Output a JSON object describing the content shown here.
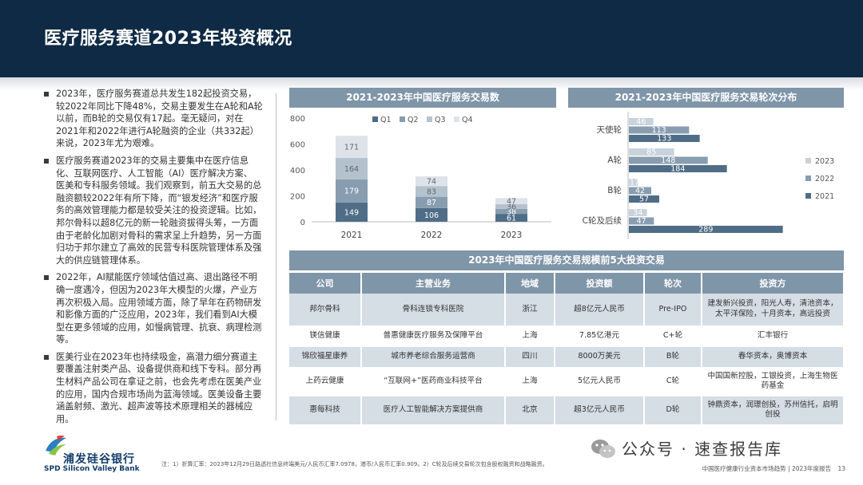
{
  "page": {
    "title": "医疗服务赛道2023年投资概况",
    "page_number": "13",
    "footer_report": "中国医疗健康行业资本市场趋势 | 2023年度报告",
    "footnote": "注：1）折算汇率：2023年12月29日路透社信息终端美元/人民币汇率7.0978，港币/人民币汇率0.909。2）C轮及后续交易轮次包含股权融资和战略融资。",
    "watermark": "公众号 · 速查报告库",
    "logo": {
      "cn": "浦发硅谷银行",
      "en": "SPD Silicon Valley Bank"
    }
  },
  "bullets": [
    "2023年，医疗服务赛道总共发生182起投资交易，较2022年同比下降48%，交易主要发生在A轮和A轮以前，而B轮的交易仅有17起。毫无疑问，对在2021年和2022年进行A轮融资的企业（共332起）来说，2023年尤为艰难。",
    "医疗服务赛道2023年的交易主要集中在医疗信息化、互联网医疗、人工智能（AI）医疗解决方案、 医美和专科服务领域。我们观察到，前五大交易的总融资额较2022年有所下降，而“银发经济”和医疗服务的高效管理能力都是较受关注的投资逻辑。比如，邦尔骨科以超8亿元的新一轮融资拔得头筹，一方面由于老龄化加剧对骨科的需求呈上升趋势，另一方面归功于邦尔建立了高效的民营专科医院管理体系及强大的供应链管理体系。",
    "2022年，AI赋能医疗领域估值过高、退出路径不明确一度遇冷，但因为2023年大模型的火爆，产业方再次积极入局。应用领域方面，除了早年在药物研发和影像方面的广泛应用，2023年，我们看到AI大模型在更多领域的应用，如慢病管理、抗衰、病理检测等。",
    "医美行业在2023年也持续吸金，高潜力细分赛道主要覆盖注射类产品、设备提供商和线下专科。部分再生材料产品公司在拿证之前，也会先考虑在医美产业的应用，国内合规市场尚为蓝海领域。医美设备主要涵盖射频、激光、超声波等技术原理相关的器械应用。"
  ],
  "chart_left": {
    "title": "2021-2023年中国医疗服务交易数"
  },
  "chart_right": {
    "title": "2021-2023年中国医疗服务交易轮次分布"
  },
  "chart_data": [
    {
      "type": "bar",
      "stacked": true,
      "title": "2021-2023年中国医疗服务交易数",
      "categories": [
        "2021",
        "2022",
        "2023"
      ],
      "series": [
        {
          "name": "Q1",
          "values": [
            149,
            106,
            61
          ],
          "color": "#4f6d87"
        },
        {
          "name": "Q2",
          "values": [
            179,
            87,
            38
          ],
          "color": "#889db0"
        },
        {
          "name": "Q3",
          "values": [
            164,
            83,
            36
          ],
          "color": "#b4c2ce"
        },
        {
          "name": "Q4",
          "values": [
            171,
            74,
            47
          ],
          "color": "#dde3e9"
        }
      ],
      "yticks": [
        "0",
        "200",
        "400",
        "600",
        "800"
      ],
      "ylim": [
        0,
        800
      ],
      "legend": "top"
    },
    {
      "type": "bar",
      "orientation": "horizontal",
      "title": "2021-2023年中国医疗服务交易轮次分布",
      "categories": [
        "天使轮",
        "A轮",
        "B轮",
        "C轮及后续"
      ],
      "series": [
        {
          "name": "2023",
          "values": [
            46,
            85,
            17,
            34
          ],
          "color": "#c8d2dc"
        },
        {
          "name": "2022",
          "values": [
            113,
            148,
            42,
            47
          ],
          "color": "#889db0"
        },
        {
          "name": "2021",
          "values": [
            133,
            184,
            57,
            289
          ],
          "color": "#4f6d87"
        }
      ],
      "xlim": [
        0,
        300
      ],
      "legend": "right"
    }
  ],
  "table": {
    "title": "2023年中国医疗服务交易规模前5大投资交易",
    "headers": [
      "公司",
      "主营业务",
      "地域",
      "投资额",
      "轮次",
      "投资方"
    ],
    "rows": [
      [
        "邦尔骨科",
        "骨科连锁专科医院",
        "浙江",
        "超8亿元人民币",
        "Pre-IPO",
        "建发新兴投资，阳光人寿，清池资本，太平洋保险，十月资本，高远投资"
      ],
      [
        "镁信健康",
        "普惠健康医疗服务及保障平台",
        "上海",
        "7.85亿港元",
        "C+轮",
        "汇丰银行"
      ],
      [
        "锦欣福星康养",
        "城市养老综合服务运营商",
        "四川",
        "8000万美元",
        "B轮",
        "春华资本，奥博资本"
      ],
      [
        "上药云健康",
        "“互联网+”医药商业科技平台",
        "上海",
        "5亿元人民币",
        "C轮",
        "中国国新控股，工银投资，上海生物医药基金"
      ],
      [
        "惠每科技",
        "医疗人工智能解决方案提供商",
        "北京",
        "超3亿元人民币",
        "D轮",
        "钟鼎资本，润璟创投，苏州信托，启明创投"
      ]
    ]
  }
}
